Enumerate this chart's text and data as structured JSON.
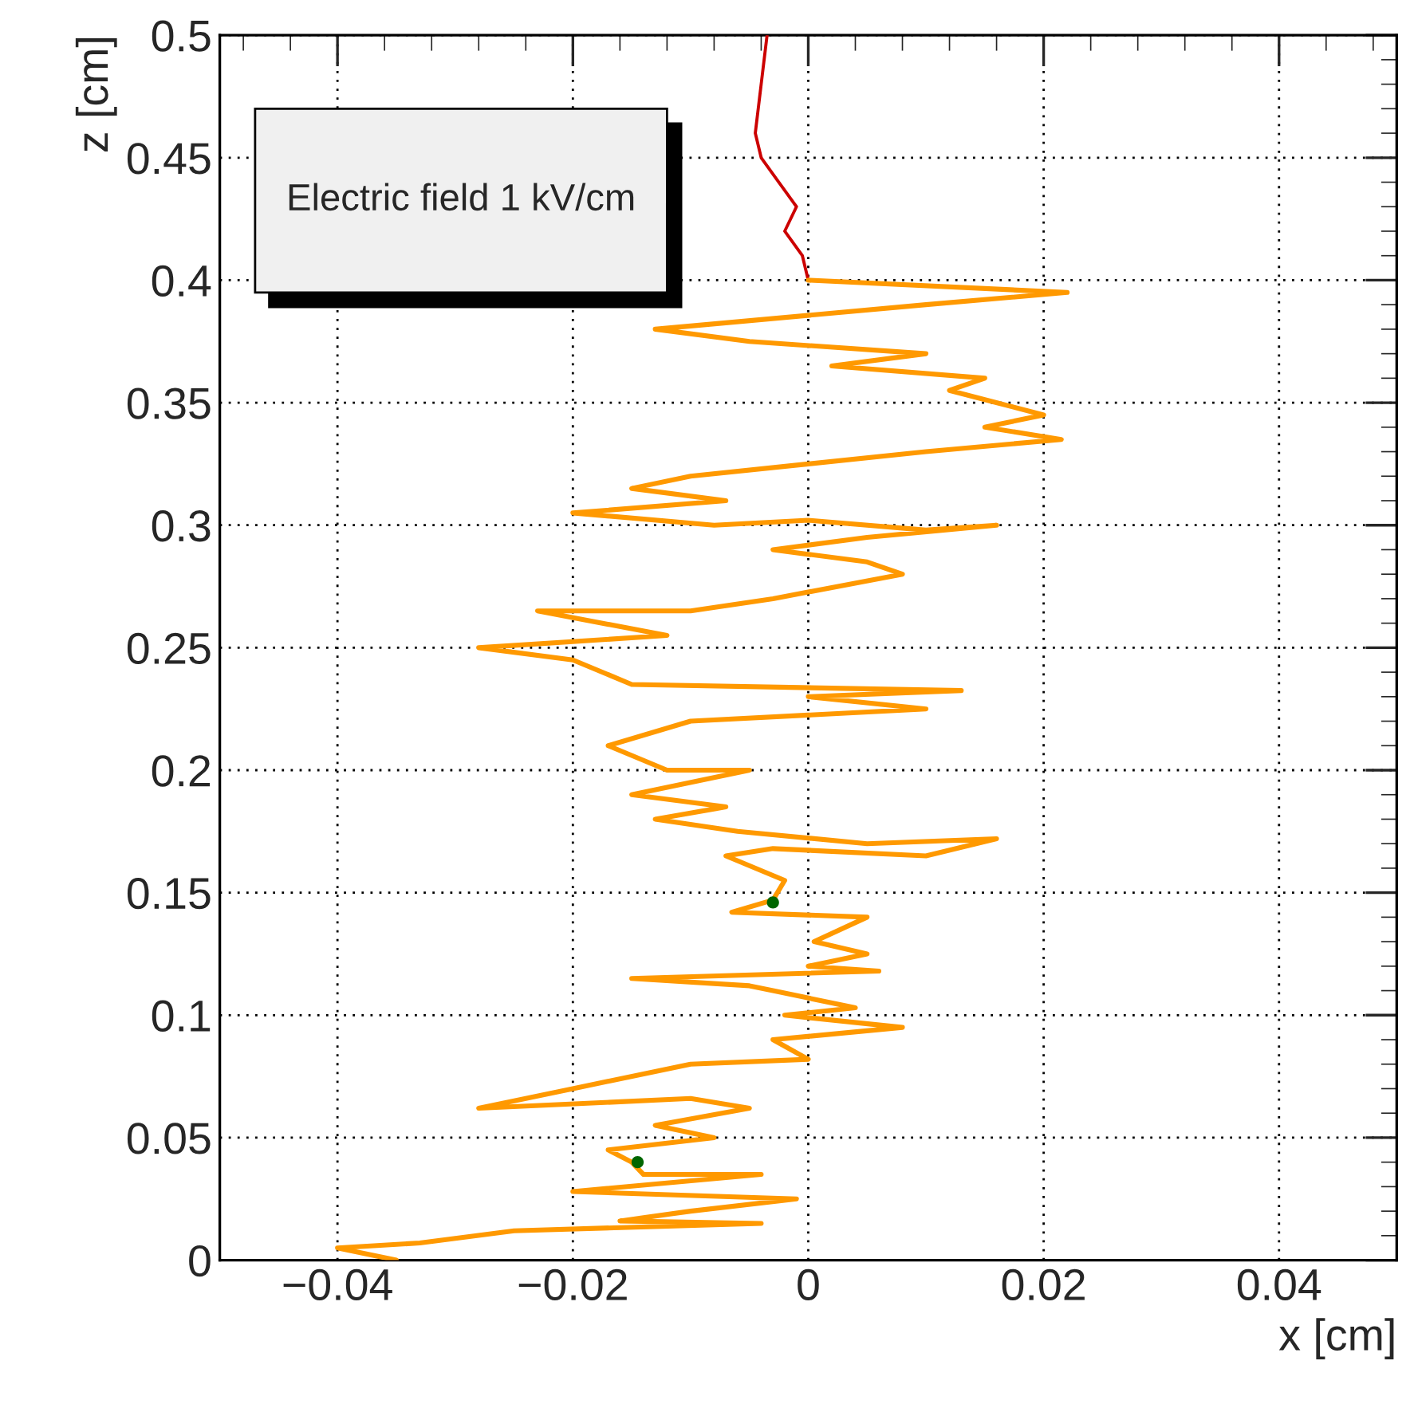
{
  "chart_data": {
    "type": "line",
    "xlabel": "x [cm]",
    "ylabel": "z [cm]",
    "xlim": [
      -0.05,
      0.05
    ],
    "ylim": [
      0,
      0.5
    ],
    "xticks": [
      {
        "value": -0.04,
        "label": "−0.04"
      },
      {
        "value": -0.02,
        "label": "−0.02"
      },
      0,
      0.02,
      0.04
    ],
    "yticks": [
      0,
      0.05,
      0.1,
      0.15,
      0.2,
      0.25,
      0.3,
      0.35,
      0.4,
      0.45,
      0.5
    ],
    "grid": true,
    "line_style": "solid",
    "marker": "none",
    "annotations": [
      "Electric field 1 kV/cm"
    ],
    "series": [
      {
        "color": "#cc0000",
        "x": [
          -0.0035,
          -0.004,
          -0.0045,
          -0.004,
          -0.0025,
          -0.001,
          -0.002,
          -0.0005,
          0
        ],
        "values": [
          0.5,
          0.48,
          0.46,
          0.45,
          0.44,
          0.43,
          0.42,
          0.41,
          0.4
        ]
      },
      {
        "color": "#ff9900",
        "x": [
          0,
          0.022,
          0.01,
          -0.013,
          -0.005,
          0.01,
          0.002,
          0.015,
          0.012,
          0.02,
          0.015,
          0.0215,
          0.01,
          0,
          -0.01,
          -0.015,
          -0.007,
          -0.02,
          -0.008,
          0,
          0.01,
          0.016,
          0.005,
          -0.003,
          0.005,
          0.008,
          -0.003,
          -0.01,
          -0.023,
          -0.012,
          -0.028,
          -0.02,
          -0.015,
          0.013,
          0,
          0.01,
          -0.01,
          -0.017,
          -0.012,
          -0.005,
          -0.015,
          -0.007,
          -0.013,
          -0.006,
          0.005,
          0.016,
          0.01,
          -0.003,
          -0.007,
          -0.002,
          -0.003,
          -0.0065,
          0.005,
          0.0005,
          0.005,
          0,
          0.006,
          -0.015,
          -0.005,
          -0.003,
          0.004,
          -0.002,
          0.008,
          -0.003,
          0,
          -0.01,
          -0.02,
          -0.028,
          -0.01,
          -0.005,
          -0.013,
          -0.008,
          -0.017,
          -0.015,
          -0.014,
          -0.004,
          -0.02,
          -0.001,
          -0.01,
          -0.016,
          -0.004,
          -0.025,
          -0.033,
          -0.04,
          -0.035
        ],
        "values": [
          0.4,
          0.395,
          0.39,
          0.38,
          0.375,
          0.37,
          0.365,
          0.36,
          0.355,
          0.345,
          0.34,
          0.335,
          0.33,
          0.325,
          0.32,
          0.315,
          0.31,
          0.305,
          0.3,
          0.302,
          0.298,
          0.3,
          0.295,
          0.29,
          0.285,
          0.28,
          0.27,
          0.265,
          0.265,
          0.255,
          0.25,
          0.245,
          0.235,
          0.2325,
          0.23,
          0.225,
          0.22,
          0.21,
          0.2,
          0.2,
          0.19,
          0.185,
          0.18,
          0.175,
          0.17,
          0.172,
          0.165,
          0.168,
          0.165,
          0.155,
          0.147,
          0.142,
          0.14,
          0.13,
          0.125,
          0.12,
          0.118,
          0.115,
          0.112,
          0.11,
          0.103,
          0.1,
          0.095,
          0.09,
          0.082,
          0.08,
          0.07,
          0.062,
          0.066,
          0.062,
          0.055,
          0.05,
          0.045,
          0.04,
          0.035,
          0.035,
          0.028,
          0.025,
          0.02,
          0.016,
          0.015,
          0.012,
          0.007,
          0.005,
          0.0
        ]
      },
      {
        "type": "scatter",
        "color": "#006600",
        "marker": "circle",
        "x": [
          -0.003,
          -0.0145
        ],
        "values": [
          0.146,
          0.04
        ]
      }
    ]
  }
}
